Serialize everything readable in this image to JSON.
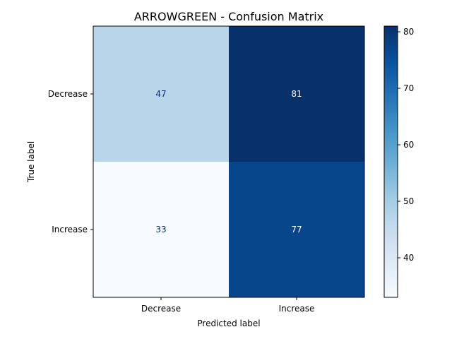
{
  "chart_data": {
    "type": "heatmap",
    "title": "ARROWGREEN - Confusion Matrix",
    "xlabel": "Predicted label",
    "ylabel": "True label",
    "x_categories": [
      "Decrease",
      "Increase"
    ],
    "y_categories": [
      "Decrease",
      "Increase"
    ],
    "values": [
      [
        47,
        81
      ],
      [
        33,
        77
      ]
    ],
    "colormap": "Blues",
    "colorbar": {
      "vmin": 33,
      "vmax": 81,
      "ticks": [
        40,
        50,
        60,
        70,
        80
      ]
    },
    "grid": false
  }
}
